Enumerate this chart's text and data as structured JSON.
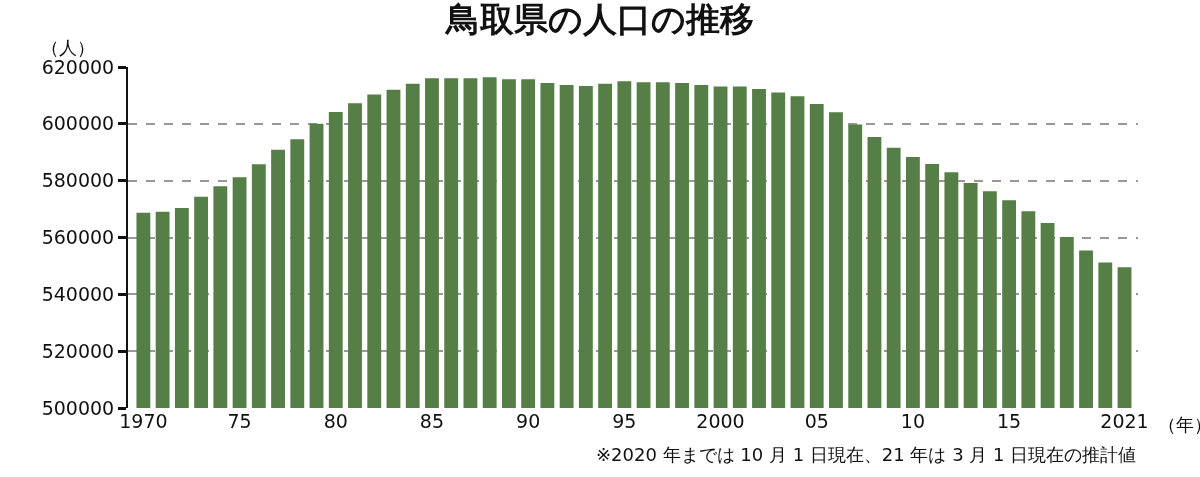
{
  "chart_data": {
    "type": "bar",
    "title": "鳥取県の人口の推移",
    "ylabel": "（人）",
    "xlabel": "（年）",
    "annotations": [
      "※2020 年までは 10 月 1 日現在、21 年は 3 月 1 日現在の推計値"
    ],
    "categories": [
      "1970",
      null,
      null,
      null,
      null,
      "75",
      null,
      null,
      null,
      null,
      "80",
      null,
      null,
      null,
      null,
      "85",
      null,
      null,
      null,
      null,
      "90",
      null,
      null,
      null,
      null,
      "95",
      null,
      null,
      null,
      null,
      "2000",
      null,
      null,
      null,
      null,
      "05",
      null,
      null,
      null,
      null,
      "10",
      null,
      null,
      null,
      null,
      "15",
      null,
      null,
      null,
      null,
      null,
      "2021"
    ],
    "values": [
      568700,
      569100,
      570400,
      574300,
      578000,
      581200,
      585800,
      590900,
      594600,
      600000,
      604200,
      607200,
      610300,
      612000,
      614100,
      616000,
      616000,
      616000,
      616400,
      615700,
      615700,
      614400,
      613700,
      613300,
      614100,
      615000,
      614600,
      614600,
      614400,
      613700,
      613100,
      613100,
      612300,
      611000,
      609700,
      607000,
      604100,
      599800,
      595400,
      591600,
      588300,
      585900,
      583000,
      579200,
      576300,
      573100,
      569200,
      565100,
      560200,
      555400,
      551200,
      549500
    ],
    "color": "#557f47",
    "ylim": [
      500000,
      620000
    ],
    "yticks": [
      500000,
      520000,
      540000,
      560000,
      580000,
      600000,
      620000
    ],
    "grid": "y"
  }
}
